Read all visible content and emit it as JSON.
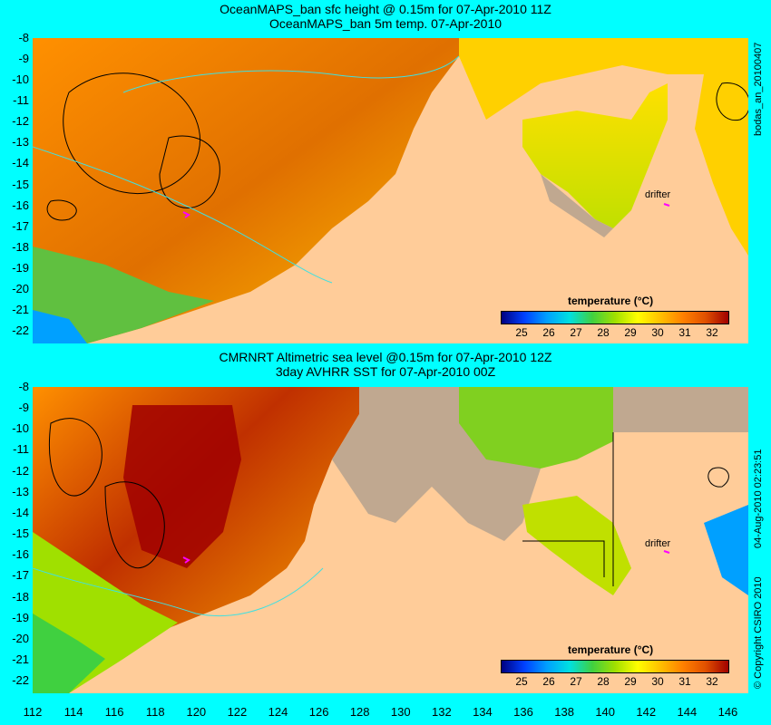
{
  "top_panel": {
    "title_line1": "OceanMAPS_ban sfc height @ 0.15m for 07-Apr-2010 11Z",
    "title_line2": "OceanMAPS_ban 5m temp. 07-Apr-2010",
    "side_label": "bodas_an_20100407",
    "drifter_label": "drifter"
  },
  "bottom_panel": {
    "title_line1": "CMRNRT Altimetric sea level  @0.15m  for 07-Apr-2010 12Z",
    "title_line2": "3day AVHRR SST for 07-Apr-2010 00Z",
    "side_label": "04-Aug-2010 02:23:51",
    "copyright": "© Copyright CSIRO 2010",
    "drifter_label": "drifter"
  },
  "colorbar": {
    "title": "temperature (°C)",
    "ticks": [
      "25",
      "26",
      "27",
      "28",
      "29",
      "30",
      "31",
      "32"
    ],
    "colors": [
      "#000080",
      "#0040ff",
      "#00a0ff",
      "#00e0e0",
      "#40d040",
      "#a0e000",
      "#ffff00",
      "#ffc000",
      "#ff8000",
      "#e05000",
      "#a00000"
    ]
  },
  "axes": {
    "lat_ticks": [
      "-8",
      "-9",
      "-10",
      "-11",
      "-12",
      "-13",
      "-14",
      "-15",
      "-16",
      "-17",
      "-18",
      "-19",
      "-20",
      "-21",
      "-22"
    ],
    "lon_ticks": [
      "112",
      "114",
      "116",
      "118",
      "120",
      "122",
      "124",
      "126",
      "128",
      "130",
      "132",
      "134",
      "136",
      "138",
      "140",
      "142",
      "144",
      "146"
    ]
  },
  "colors": {
    "background": "#00ffff",
    "land": "#ffcc99",
    "no_data": "#c0a890",
    "contour_cyan": "#40e0e0",
    "drifter": "#ff00ff"
  }
}
